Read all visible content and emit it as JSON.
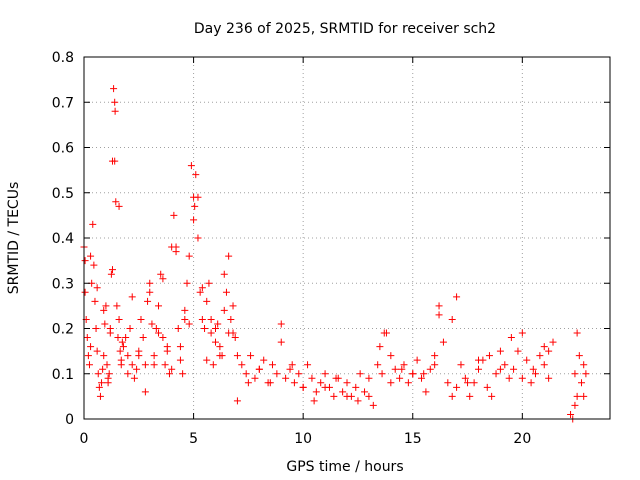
{
  "chart_data": {
    "type": "scatter",
    "title": "Day 236 of 2025, SRMTID for receiver sch2",
    "xlabel": "GPS time / hours",
    "ylabel": "SRMTID / TECUs",
    "xlim": [
      0,
      24
    ],
    "ylim": [
      0,
      0.8
    ],
    "xticks": [
      0,
      5,
      10,
      15,
      20
    ],
    "xtick_labels": [
      "0",
      "5",
      "10",
      "15",
      "20"
    ],
    "yticks": [
      0,
      0.1,
      0.2,
      0.3,
      0.4,
      0.5,
      0.6,
      0.7,
      0.8
    ],
    "ytick_labels": [
      "0",
      "0.1",
      "0.2",
      "0.3",
      "0.4",
      "0.5",
      "0.6",
      "0.7",
      "0.8"
    ],
    "grid": true,
    "legend": "none",
    "marker": "plus",
    "series": [
      {
        "name": "SRMTID",
        "color": "#ff0000",
        "x": [
          0.0,
          0.05,
          0.1,
          0.15,
          0.2,
          0.25,
          0.3,
          0.35,
          0.4,
          0.45,
          0.5,
          0.55,
          0.6,
          0.65,
          0.7,
          0.75,
          0.8,
          0.85,
          0.9,
          0.95,
          1.0,
          1.05,
          1.1,
          1.15,
          1.2,
          1.25,
          1.3,
          1.35,
          1.4,
          1.42,
          1.45,
          1.5,
          1.55,
          1.6,
          1.65,
          1.7,
          1.75,
          1.8,
          1.9,
          2.0,
          2.1,
          2.2,
          2.3,
          2.4,
          2.5,
          2.6,
          2.7,
          2.8,
          2.9,
          3.0,
          3.1,
          3.2,
          3.3,
          3.4,
          3.5,
          3.6,
          3.7,
          3.8,
          3.9,
          4.0,
          4.1,
          4.2,
          4.3,
          4.4,
          4.5,
          4.6,
          4.7,
          4.8,
          4.9,
          5.0,
          5.05,
          5.1,
          5.2,
          5.3,
          5.4,
          5.5,
          5.6,
          5.7,
          5.8,
          5.9,
          6.0,
          6.1,
          6.2,
          6.3,
          6.4,
          6.5,
          6.6,
          6.7,
          6.8,
          6.9,
          7.0,
          7.2,
          7.4,
          7.6,
          7.8,
          8.0,
          8.2,
          8.4,
          8.6,
          8.8,
          9.0,
          9.2,
          9.4,
          9.6,
          9.8,
          10.0,
          10.2,
          10.4,
          10.6,
          10.8,
          11.0,
          11.2,
          11.4,
          11.6,
          11.8,
          12.0,
          12.2,
          12.4,
          12.6,
          12.8,
          13.0,
          13.2,
          13.4,
          13.6,
          13.8,
          14.0,
          14.2,
          14.4,
          14.6,
          14.8,
          15.0,
          15.2,
          15.4,
          15.6,
          15.8,
          16.0,
          16.2,
          16.4,
          16.6,
          16.8,
          17.0,
          17.2,
          17.4,
          17.6,
          17.8,
          18.0,
          18.2,
          18.4,
          18.6,
          18.8,
          19.0,
          19.2,
          19.4,
          19.6,
          19.8,
          20.0,
          20.2,
          20.4,
          20.6,
          20.8,
          21.0,
          21.2,
          21.4,
          22.3,
          22.4,
          22.5,
          22.6,
          22.7,
          22.8,
          22.9,
          0.05,
          0.3,
          0.6,
          0.9,
          1.2,
          1.4,
          1.7,
          2.0,
          2.5,
          3.0,
          3.4,
          3.8,
          4.2,
          4.6,
          5.0,
          5.4,
          5.8,
          6.2,
          6.6,
          7.0,
          8.0,
          9.0,
          10.0,
          11.0,
          12.0,
          13.0,
          13.7,
          14.5,
          15.5,
          16.2,
          16.8,
          17.5,
          18.5,
          19.5,
          20.5,
          21.2,
          22.5,
          22.8,
          1.1,
          1.3,
          1.6,
          2.2,
          2.8,
          3.2,
          3.6,
          4.0,
          4.4,
          4.8,
          5.2,
          5.6,
          6.0,
          6.4,
          6.8,
          7.5,
          8.5,
          9.5,
          10.5,
          11.5,
          12.5,
          13.5,
          14.0,
          15.0,
          16.0,
          17.0,
          18.0,
          19.0,
          20.0,
          21.0,
          22.4,
          22.2
        ],
        "y": [
          0.38,
          0.28,
          0.22,
          0.18,
          0.14,
          0.12,
          0.16,
          0.3,
          0.43,
          0.34,
          0.26,
          0.2,
          0.15,
          0.1,
          0.07,
          0.05,
          0.08,
          0.11,
          0.14,
          0.21,
          0.25,
          0.12,
          0.09,
          0.1,
          0.19,
          0.32,
          0.57,
          0.73,
          0.7,
          0.68,
          0.48,
          0.25,
          0.18,
          0.22,
          0.15,
          0.12,
          0.17,
          0.16,
          0.18,
          0.14,
          0.2,
          0.12,
          0.09,
          0.11,
          0.15,
          0.22,
          0.18,
          0.12,
          0.26,
          0.3,
          0.21,
          0.14,
          0.2,
          0.25,
          0.32,
          0.18,
          0.12,
          0.15,
          0.1,
          0.11,
          0.45,
          0.38,
          0.2,
          0.13,
          0.1,
          0.22,
          0.3,
          0.36,
          0.56,
          0.49,
          0.47,
          0.54,
          0.4,
          0.28,
          0.22,
          0.2,
          0.26,
          0.3,
          0.19,
          0.12,
          0.17,
          0.21,
          0.16,
          0.14,
          0.32,
          0.28,
          0.19,
          0.22,
          0.25,
          0.18,
          0.04,
          0.12,
          0.1,
          0.14,
          0.09,
          0.11,
          0.13,
          0.08,
          0.12,
          0.1,
          0.21,
          0.09,
          0.11,
          0.08,
          0.1,
          0.07,
          0.12,
          0.09,
          0.06,
          0.08,
          0.1,
          0.07,
          0.05,
          0.09,
          0.06,
          0.08,
          0.05,
          0.07,
          0.1,
          0.06,
          0.09,
          0.03,
          0.12,
          0.1,
          0.19,
          0.14,
          0.11,
          0.09,
          0.12,
          0.08,
          0.1,
          0.13,
          0.09,
          0.06,
          0.11,
          0.12,
          0.23,
          0.17,
          0.08,
          0.05,
          0.27,
          0.12,
          0.09,
          0.05,
          0.08,
          0.11,
          0.13,
          0.07,
          0.05,
          0.1,
          0.15,
          0.12,
          0.09,
          0.11,
          0.15,
          0.19,
          0.13,
          0.08,
          0.1,
          0.14,
          0.12,
          0.09,
          0.17,
          0.0,
          0.03,
          0.19,
          0.14,
          0.08,
          0.12,
          0.1,
          0.35,
          0.36,
          0.29,
          0.24,
          0.2,
          0.57,
          0.13,
          0.1,
          0.14,
          0.28,
          0.19,
          0.16,
          0.37,
          0.24,
          0.44,
          0.29,
          0.22,
          0.14,
          0.36,
          0.14,
          0.11,
          0.17,
          0.07,
          0.07,
          0.05,
          0.05,
          0.19,
          0.11,
          0.1,
          0.25,
          0.22,
          0.08,
          0.14,
          0.18,
          0.11,
          0.15,
          0.05,
          0.05,
          0.08,
          0.33,
          0.47,
          0.27,
          0.06,
          0.12,
          0.31,
          0.38,
          0.16,
          0.21,
          0.49,
          0.13,
          0.2,
          0.24,
          0.19,
          0.08,
          0.08,
          0.12,
          0.04,
          0.09,
          0.04,
          0.16,
          0.08,
          0.1,
          0.14,
          0.07,
          0.13,
          0.11,
          0.09,
          0.16,
          0.1,
          0.01
        ]
      }
    ]
  }
}
